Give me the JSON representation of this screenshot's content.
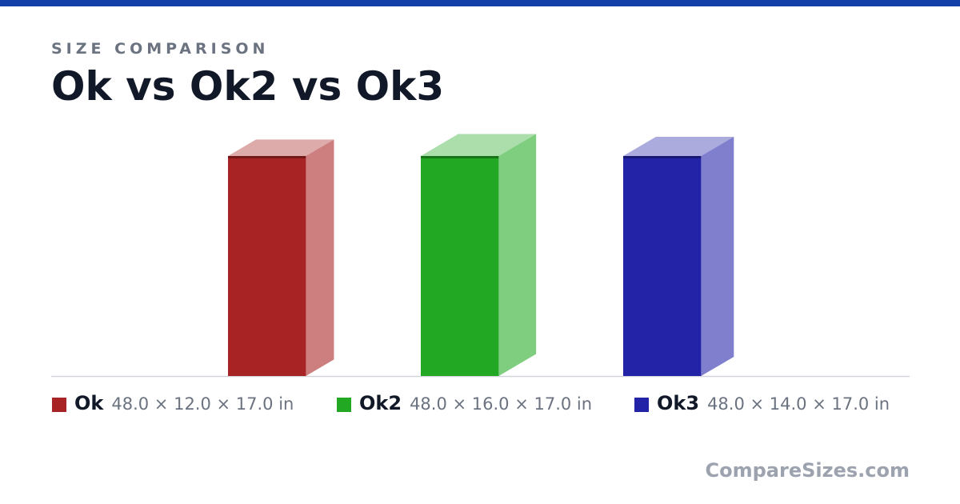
{
  "header": {
    "kicker": "SIZE COMPARISON",
    "title": "Ok vs Ok2 vs Ok3"
  },
  "items": [
    {
      "name": "Ok",
      "color": "#a82323",
      "height": 48,
      "depth": 12,
      "width": 17,
      "dims_label": "48.0 × 12.0 × 17.0 in"
    },
    {
      "name": "Ok2",
      "color": "#22a822",
      "height": 48,
      "depth": 16,
      "width": 17,
      "dims_label": "48.0 × 16.0 × 17.0 in"
    },
    {
      "name": "Ok3",
      "color": "#2323a8",
      "height": 48,
      "depth": 14,
      "width": 17,
      "dims_label": "48.0 × 14.0 × 17.0 in"
    }
  ],
  "footer": {
    "brand": "CompareSizes.com"
  }
}
